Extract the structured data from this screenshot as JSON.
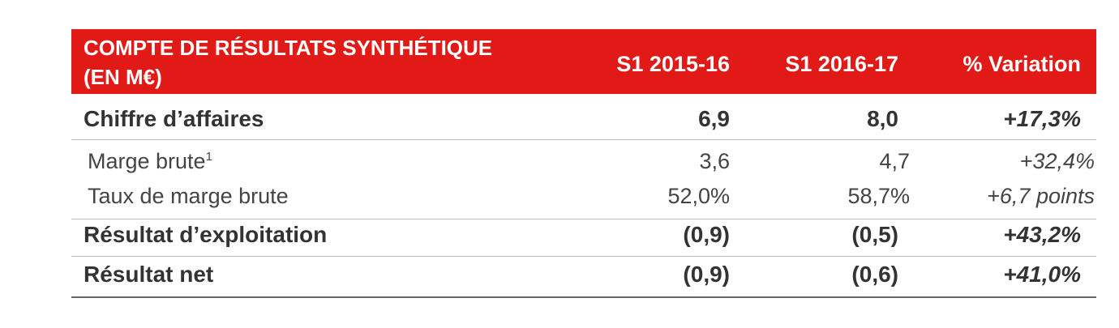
{
  "header": {
    "title_lines": [
      "COMPTE DE RÉSULTATS SYNTHÉTIQUE",
      "(EN M€)"
    ],
    "columns": [
      "S1 2015-16",
      "S1 2016-17",
      "% Variation"
    ]
  },
  "table": {
    "rows": [
      {
        "label": "Chiffre d’affaires",
        "cells": [
          "6,9",
          "8,0",
          "+17,3%"
        ]
      },
      {
        "label": "Marge brute",
        "footnote": "1",
        "cells": [
          "3,6",
          "4,7",
          "+32,4%"
        ]
      },
      {
        "label": "Taux de marge brute",
        "cells": [
          "52,0%",
          "58,7%",
          "+6,7 points"
        ]
      },
      {
        "label": "Résultat d’exploitation",
        "cells": [
          "(0,9)",
          "(0,5)",
          "+43,2%"
        ]
      },
      {
        "label": "Résultat net",
        "cells": [
          "(0,9)",
          "(0,6)",
          "+41,0%"
        ]
      }
    ]
  }
}
